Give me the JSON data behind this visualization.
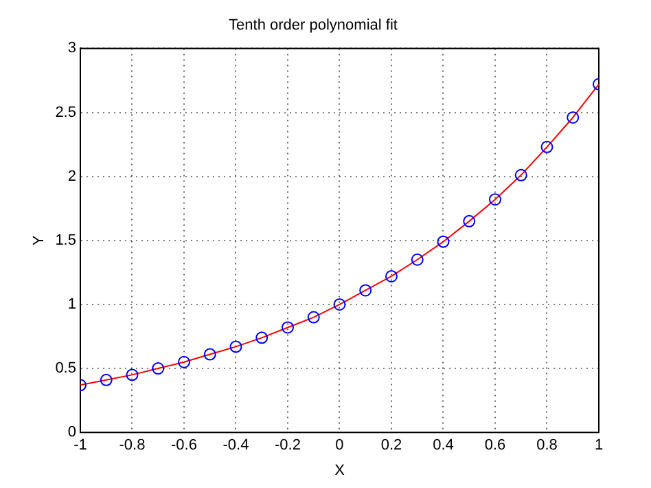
{
  "chart_data": {
    "type": "scatter",
    "title": "Tenth order polynomial fit",
    "xlabel": "X",
    "ylabel": "Y",
    "x": [
      -1,
      -0.9,
      -0.8,
      -0.7,
      -0.6,
      -0.5,
      -0.4,
      -0.3,
      -0.2,
      -0.1,
      0,
      0.1,
      0.2,
      0.3,
      0.4,
      0.5,
      0.6,
      0.7,
      0.8,
      0.9,
      1
    ],
    "series": [
      {
        "type": "scatter",
        "color": "#0000ff",
        "marker": "circle",
        "values": [
          0.37,
          0.41,
          0.45,
          0.5,
          0.55,
          0.61,
          0.67,
          0.74,
          0.82,
          0.9,
          1.0,
          1.11,
          1.22,
          1.35,
          1.49,
          1.65,
          1.82,
          2.01,
          2.23,
          2.46,
          2.72
        ]
      },
      {
        "type": "line",
        "color": "#ff0000",
        "marker": "none",
        "line_style": "solid",
        "values": [
          0.37,
          0.41,
          0.45,
          0.5,
          0.55,
          0.61,
          0.67,
          0.74,
          0.82,
          0.9,
          1.0,
          1.11,
          1.22,
          1.35,
          1.49,
          1.65,
          1.82,
          2.01,
          2.23,
          2.46,
          2.72
        ]
      }
    ],
    "xlim": [
      -1,
      1
    ],
    "xticks": [
      -1,
      -0.8,
      -0.6,
      -0.4,
      -0.2,
      0,
      0.2,
      0.4,
      0.6,
      0.8,
      1
    ],
    "ylim": [
      0,
      3
    ],
    "yticks": [
      0,
      0.5,
      1,
      1.5,
      2,
      2.5,
      3
    ],
    "grid": true,
    "legend": false
  }
}
